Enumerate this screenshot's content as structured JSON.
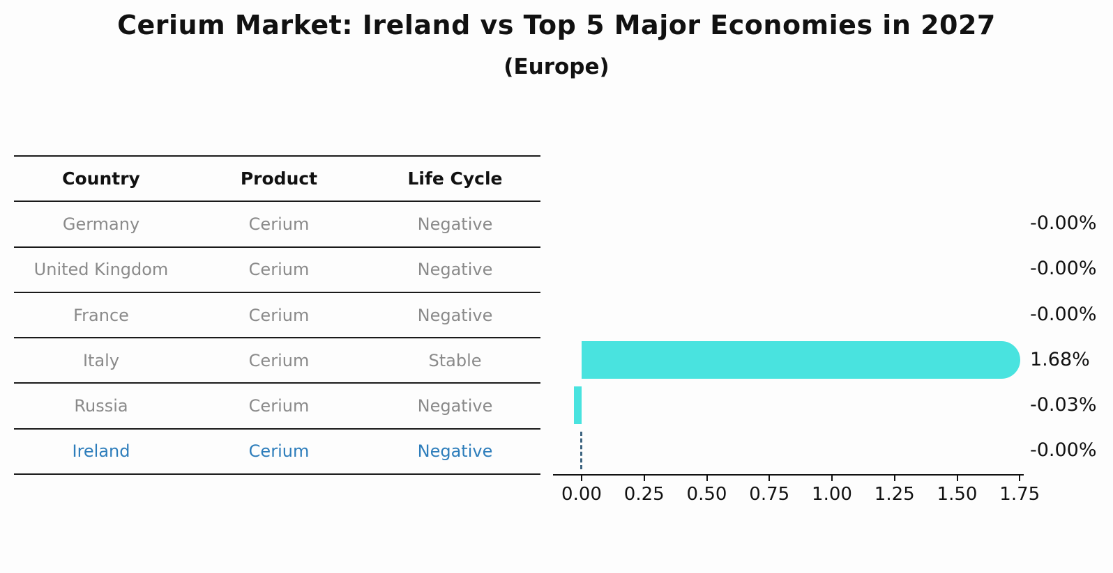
{
  "header": {
    "title": "Cerium Market: Ireland vs Top 5 Major Economies in 2027",
    "subtitle": "(Europe)"
  },
  "table": {
    "headers": [
      "Country",
      "Product",
      "Life Cycle"
    ],
    "rows": [
      {
        "country": "Germany",
        "product": "Cerium",
        "life_cycle": "Negative",
        "highlighted": false
      },
      {
        "country": "United Kingdom",
        "product": "Cerium",
        "life_cycle": "Negative",
        "highlighted": false
      },
      {
        "country": "France",
        "product": "Cerium",
        "life_cycle": "Negative",
        "highlighted": false
      },
      {
        "country": "Italy",
        "product": "Cerium",
        "life_cycle": "Stable",
        "highlighted": false
      },
      {
        "country": "Russia",
        "product": "Cerium",
        "life_cycle": "Negative",
        "highlighted": false
      },
      {
        "country": "Ireland",
        "product": "Cerium",
        "life_cycle": "Negative",
        "highlighted": true
      }
    ]
  },
  "chart_data": {
    "type": "bar",
    "orientation": "horizontal",
    "title": "Cerium Market: Ireland vs Top 5 Major Economies in 2027",
    "subtitle": "(Europe)",
    "categories": [
      "Germany",
      "United Kingdom",
      "France",
      "Italy",
      "Russia",
      "Ireland"
    ],
    "values": [
      -0.0,
      -0.0,
      -0.0,
      1.68,
      -0.03,
      -0.0
    ],
    "value_labels": [
      "-0.00%",
      "-0.00%",
      "-0.00%",
      "1.68%",
      "-0.03%",
      "-0.00%"
    ],
    "unit": "%",
    "xlabel": "",
    "ylabel": "",
    "xticks": [
      0.0,
      0.25,
      0.5,
      0.75,
      1.0,
      1.25,
      1.5,
      1.75
    ],
    "xtick_labels": [
      "0.00",
      "0.25",
      "0.50",
      "0.75",
      "1.00",
      "1.25",
      "1.50",
      "1.75"
    ],
    "xlim": [
      -0.12,
      1.77
    ],
    "grid": false,
    "legend": "none",
    "highlight": {
      "index": 5,
      "category": "Ireland",
      "style": "dashed-zero-line"
    },
    "colors": {
      "bar": "#49e3df",
      "highlight_text": "#2d7dbb",
      "dashed_line": "#3d6480",
      "row_text": "#8a8a8a",
      "axis": "#111111",
      "value_text": "#111111"
    }
  }
}
